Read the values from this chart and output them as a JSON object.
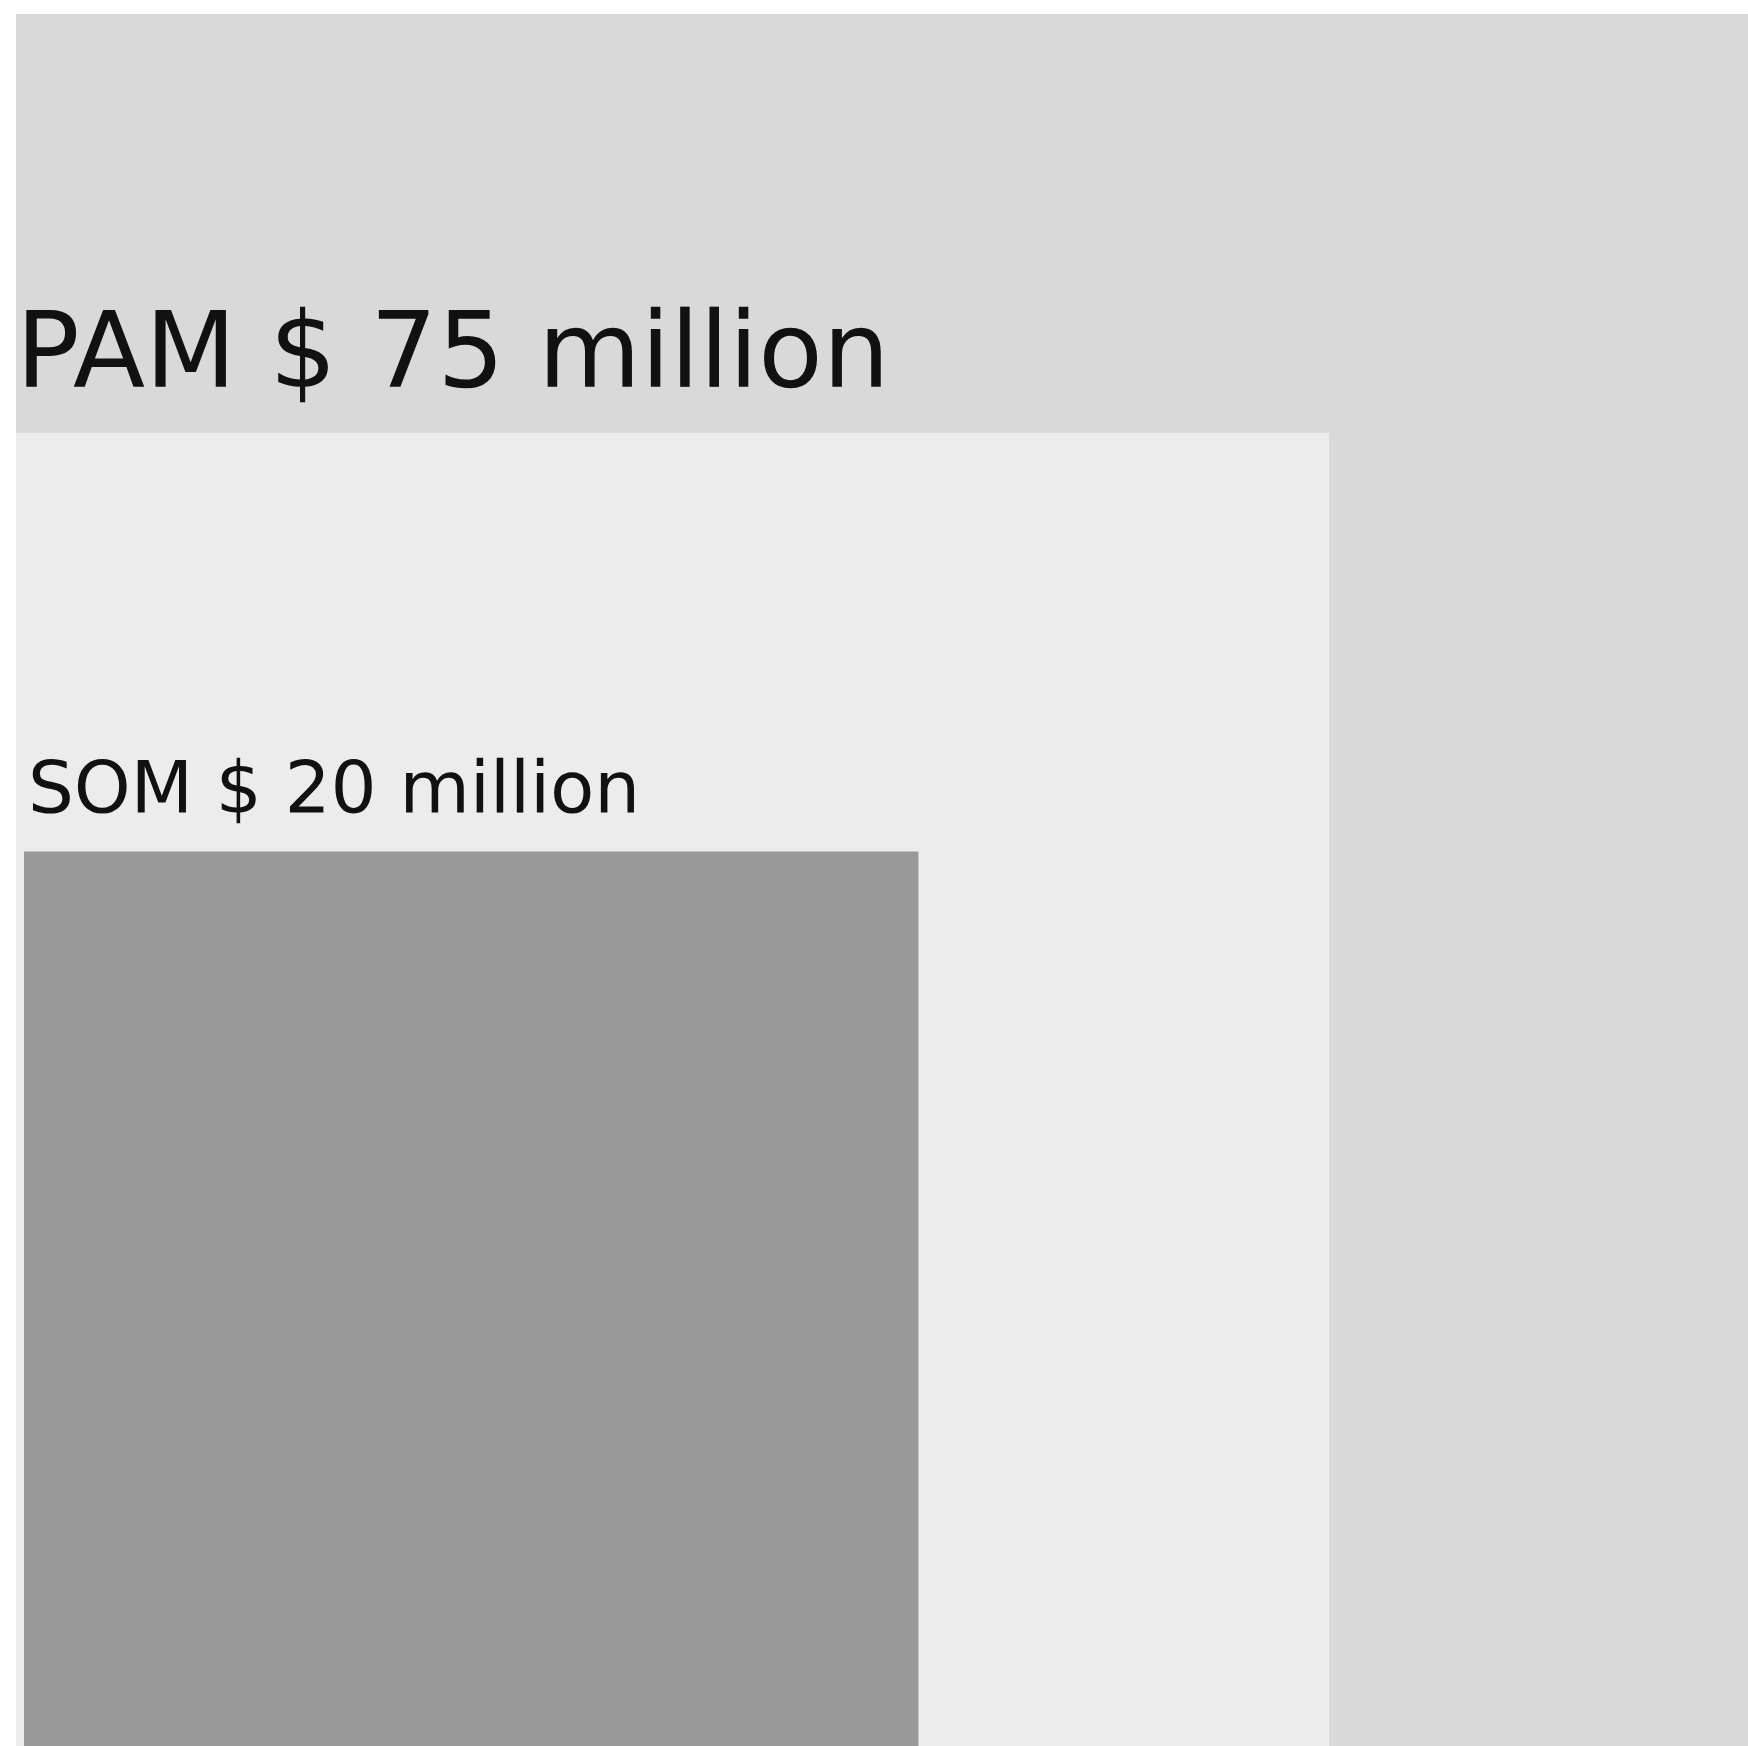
{
  "chart_data": {
    "type": "other",
    "categories": [
      "PAM",
      null,
      "SOM"
    ],
    "values": [
      75,
      null,
      20
    ],
    "value_labels": [
      "$ 75 million",
      null,
      "$ 20 million"
    ],
    "colors": [
      "#d9d9d9",
      "#ececec",
      "#999999"
    ]
  }
}
